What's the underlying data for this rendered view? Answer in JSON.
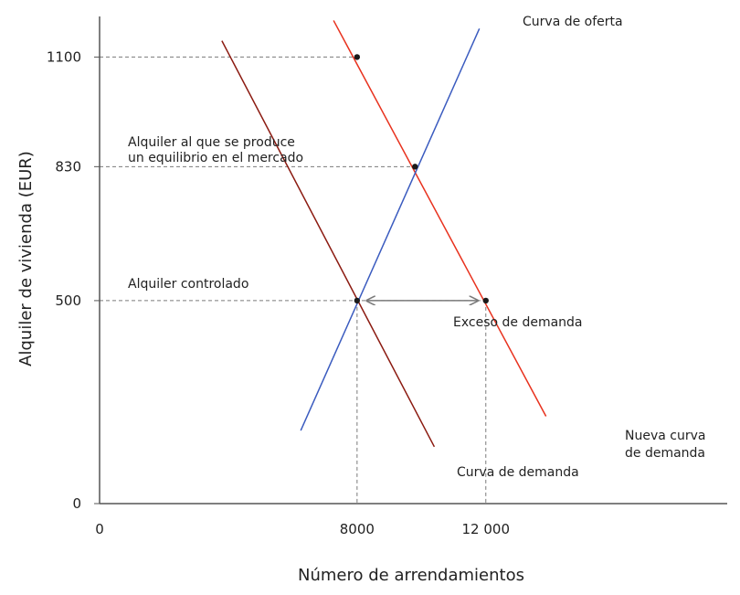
{
  "chart_data": {
    "type": "line",
    "xlabel": "Número de arrendamientos",
    "ylabel": "Alquiler de vivienda (EUR)",
    "xlim": [
      0,
      19500
    ],
    "ylim": [
      0,
      1200
    ],
    "x_ticks": [
      {
        "value": 0,
        "label": "0"
      },
      {
        "value": 8000,
        "label": "8000"
      },
      {
        "value": 12000,
        "label": "12 000"
      }
    ],
    "y_ticks": [
      {
        "value": 0,
        "label": "0"
      },
      {
        "value": 500,
        "label": "500"
      },
      {
        "value": 830,
        "label": "830"
      },
      {
        "value": 1100,
        "label": "1100"
      }
    ],
    "colors": {
      "demanda": "#8b1a10",
      "nueva_demanda": "#e8321e",
      "oferta": "#3a5bbf",
      "guides": "#7a7a7a",
      "points": "#1a1a1a"
    },
    "series": [
      {
        "name": "Curva de demanda",
        "color_key": "demanda",
        "x": [
          3800,
          10400
        ],
        "y": [
          1140,
          140
        ]
      },
      {
        "name": "Nueva curva de demanda",
        "color_key": "nueva_demanda",
        "x": [
          7270,
          13870
        ],
        "y": [
          1190,
          215
        ]
      },
      {
        "name": "Curva de oferta",
        "color_key": "oferta",
        "x": [
          6250,
          11800
        ],
        "y": [
          180,
          1170
        ]
      }
    ],
    "points": [
      {
        "x": 8000,
        "y": 1100
      },
      {
        "x": 9800,
        "y": 830
      },
      {
        "x": 8000,
        "y": 500
      },
      {
        "x": 12000,
        "y": 500
      }
    ],
    "guides": [
      {
        "from": [
          0,
          1100
        ],
        "to": [
          8000,
          1100
        ]
      },
      {
        "from": [
          0,
          830
        ],
        "to": [
          9800,
          830
        ]
      },
      {
        "from": [
          0,
          500
        ],
        "to": [
          12000,
          500
        ]
      },
      {
        "from": [
          8000,
          500
        ],
        "to": [
          8000,
          0
        ]
      },
      {
        "from": [
          12000,
          500
        ],
        "to": [
          12000,
          0
        ]
      }
    ],
    "excess_arrow": {
      "x_from": 8300,
      "x_to": 11750,
      "y": 500
    },
    "annotations": {
      "supply": "Curva de oferta",
      "demand": "Curva de demanda",
      "new_demand_1": "Nueva curva",
      "new_demand_2": "de demanda",
      "equilibrium_1": "Alquiler al que se produce",
      "equilibrium_2": "un equilibrio en el mercado",
      "controlled": "Alquiler controlado",
      "excess": "Exceso de demanda"
    }
  }
}
